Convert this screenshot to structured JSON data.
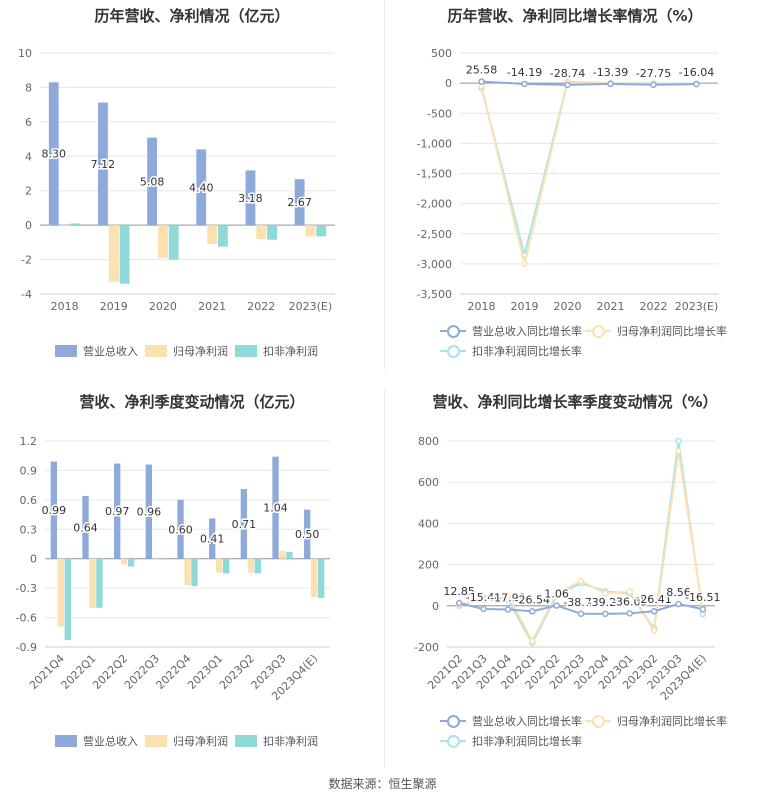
{
  "source_text": "数据来源：恒生聚源",
  "colors": {
    "revenue": "#8eaadb",
    "parent": "#fde0b0",
    "deducted": "#8fd9d9",
    "grid": "#e6e6e6",
    "axis": "#888"
  },
  "chart_data": [
    {
      "type": "bar",
      "title": "历年营收、净利情况（亿元）",
      "categories": [
        "2018",
        "2019",
        "2020",
        "2021",
        "2022",
        "2023(E)"
      ],
      "ylim": [
        -4,
        10
      ],
      "yticks": [
        -4,
        -2,
        0,
        2,
        4,
        6,
        8,
        10
      ],
      "legend_position": "bottom",
      "series": [
        {
          "name": "营业总收入",
          "color": "#8eaadb",
          "values": [
            8.3,
            7.12,
            5.08,
            4.4,
            3.18,
            2.67
          ],
          "labels": [
            "8.30",
            "7.12",
            "5.08",
            "4.40",
            "3.18",
            "2.67"
          ]
        },
        {
          "name": "归母净利润",
          "color": "#fde0b0",
          "values": [
            -0.05,
            -3.3,
            -1.9,
            -1.1,
            -0.8,
            -0.65
          ]
        },
        {
          "name": "扣非净利润",
          "color": "#8fd9d9",
          "values": [
            0.1,
            -3.4,
            -2.0,
            -1.25,
            -0.85,
            -0.65
          ]
        }
      ]
    },
    {
      "type": "line",
      "title": "历年营收、净利同比增长率情况（%）",
      "categories": [
        "2018",
        "2019",
        "2020",
        "2021",
        "2022",
        "2023(E)"
      ],
      "ylim": [
        -3500,
        500
      ],
      "yticks": [
        -3500,
        -3000,
        -2500,
        -2000,
        -1500,
        -1000,
        -500,
        0,
        500
      ],
      "ytick_labels": [
        "-3,500",
        "-3,000",
        "-2,500",
        "-2,000",
        "-1,500",
        "-1,000",
        "-500",
        "0",
        "500"
      ],
      "legend_position": "bottom",
      "series": [
        {
          "name": "营业总收入同比增长率",
          "color": "#8eaadb",
          "values": [
            25.58,
            -14.19,
            -28.74,
            -13.39,
            -27.75,
            -16.04
          ],
          "labels": [
            "25.58",
            "-14.19",
            "-28.74",
            "-13.39",
            "-27.75",
            "-16.04"
          ]
        },
        {
          "name": "归母净利润同比增长率",
          "color": "#fde0b0",
          "values": [
            -50,
            -3000,
            10,
            -5,
            -10,
            -10
          ]
        },
        {
          "name": "扣非净利润同比增长率",
          "color": "#a8e4ea",
          "values": [
            -80,
            -2850,
            20,
            0,
            -5,
            -8
          ]
        }
      ]
    },
    {
      "type": "bar",
      "title": "营收、净利季度变动情况（亿元）",
      "categories": [
        "2021Q4",
        "2022Q1",
        "2022Q2",
        "2022Q3",
        "2022Q4",
        "2023Q1",
        "2023Q2",
        "2023Q3",
        "2023Q4(E)"
      ],
      "ylim": [
        -0.9,
        1.2
      ],
      "yticks": [
        -0.9,
        -0.6,
        -0.3,
        0,
        0.3,
        0.6,
        0.9,
        1.2
      ],
      "legend_position": "bottom",
      "series": [
        {
          "name": "营业总收入",
          "color": "#8eaadb",
          "values": [
            0.99,
            0.64,
            0.97,
            0.96,
            0.6,
            0.41,
            0.71,
            1.04,
            0.5
          ],
          "labels": [
            "0.99",
            "0.64",
            "0.97",
            "0.96",
            "0.60",
            "0.41",
            "0.71",
            "1.04",
            "0.50"
          ]
        },
        {
          "name": "归母净利润",
          "color": "#fde0b0",
          "values": [
            -0.69,
            -0.5,
            -0.06,
            0,
            -0.27,
            -0.14,
            -0.14,
            0.08,
            -0.39
          ]
        },
        {
          "name": "扣非净利润",
          "color": "#8fd9d9",
          "values": [
            -0.83,
            -0.5,
            -0.08,
            0,
            -0.28,
            -0.15,
            -0.15,
            0.07,
            -0.4
          ]
        }
      ]
    },
    {
      "type": "line",
      "title": "营收、净利同比增长率季度变动情况（%）",
      "categories": [
        "2021Q2",
        "2021Q3",
        "2021Q4",
        "2022Q1",
        "2022Q2",
        "2022Q3",
        "2022Q4",
        "2023Q1",
        "2023Q2",
        "2023Q3",
        "2023Q4(E)"
      ],
      "ylim": [
        -200,
        800
      ],
      "yticks": [
        -200,
        0,
        200,
        400,
        600,
        800
      ],
      "legend_position": "bottom",
      "series": [
        {
          "name": "营业总收入同比增长率",
          "color": "#8eaadb",
          "values": [
            12.85,
            -15.44,
            -17.99,
            -26.54,
            1.06,
            -38.79,
            -39.26,
            -36.65,
            -26.41,
            8.56,
            -16.51
          ],
          "labels": [
            "12.85",
            "-15.44",
            "-17.99",
            "-26.54",
            "1.06",
            "-38.79",
            "-39.26",
            "-36.65",
            "-26.41",
            "8.56",
            "-16.51"
          ]
        },
        {
          "name": "归母净利润同比增长率",
          "color": "#fde0b0",
          "values": [
            5,
            30,
            50,
            -170,
            60,
            120,
            60,
            70,
            -120,
            750,
            -20
          ]
        },
        {
          "name": "扣非净利润同比增长率",
          "color": "#a8e4ea",
          "values": [
            0,
            40,
            30,
            -180,
            50,
            110,
            70,
            60,
            -110,
            800,
            -40
          ]
        }
      ]
    }
  ]
}
